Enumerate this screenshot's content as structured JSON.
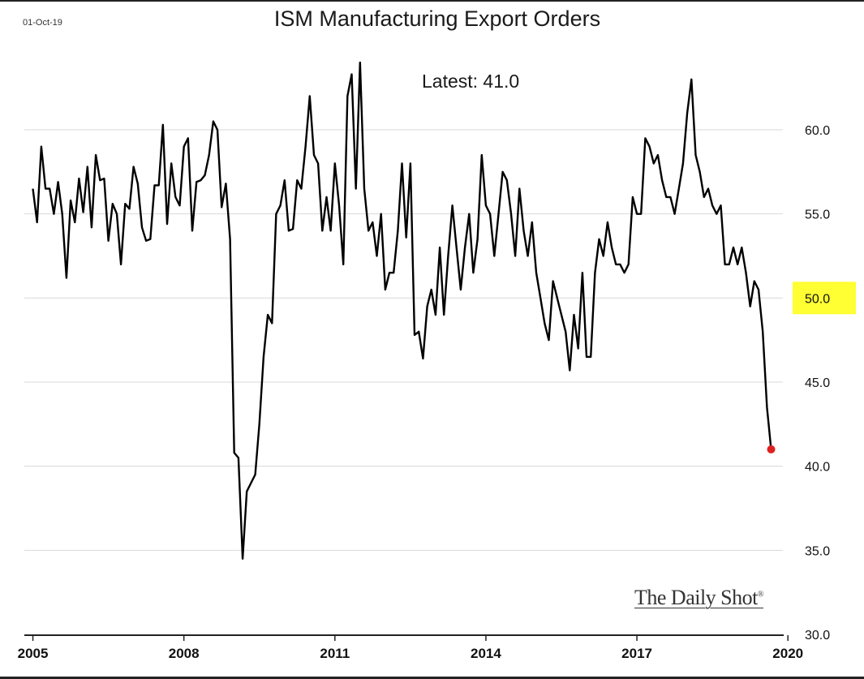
{
  "header": {
    "date_stamp": "01-Oct-19",
    "title": "ISM Manufacturing Export Orders",
    "latest_text": "Latest:  41.0"
  },
  "branding": {
    "name": "The Daily Shot",
    "mark": "®"
  },
  "colors": {
    "line": "#000000",
    "latest_marker": "#e02020",
    "highlight_50": "#ffff33",
    "gridline": "#d9d9d9"
  },
  "chart_data": {
    "type": "line",
    "title": "ISM Manufacturing Export Orders",
    "xlabel": "",
    "ylabel": "",
    "ylim": [
      30,
      62
    ],
    "xlim": [
      2004.83,
      2019.9
    ],
    "y_ticks": [
      "30.0",
      "35.0",
      "40.0",
      "45.0",
      "50.0",
      "55.0",
      "60.0"
    ],
    "x_ticks": [
      "2005",
      "2008",
      "2011",
      "2014",
      "2017",
      "2020"
    ],
    "highlighted_y_tick": "50.0",
    "grid": true,
    "annotation": "Latest:  41.0",
    "latest_value": 41.0,
    "series": [
      {
        "x_start": "2005-01",
        "frequency": "monthly",
        "values": [
          56.5,
          54.5,
          59.0,
          56.5,
          56.5,
          55.0,
          56.9,
          55.0,
          51.2,
          55.8,
          54.5,
          57.1,
          55.1,
          57.8,
          54.2,
          58.5,
          57.0,
          57.1,
          53.4,
          55.6,
          55.0,
          52.0,
          55.6,
          55.3,
          57.8,
          56.8,
          54.2,
          53.4,
          53.5,
          56.7,
          56.7,
          60.3,
          54.4,
          58.0,
          56.0,
          55.5,
          59.0,
          59.5,
          54.0,
          56.9,
          57.0,
          57.3,
          58.5,
          60.5,
          60.0,
          55.4,
          56.8,
          53.5,
          40.8,
          40.5,
          34.5,
          38.5,
          39.0,
          39.5,
          42.5,
          46.5,
          49.0,
          48.5,
          55.0,
          55.5,
          57.0,
          54.0,
          54.1,
          57.0,
          56.5,
          59.0,
          62.0,
          58.5,
          58.0,
          54.0,
          56.0,
          54.0,
          58.0,
          55.5,
          52.0,
          62.0,
          63.3,
          56.5,
          64.0,
          56.5,
          54.0,
          54.5,
          52.5,
          55.0,
          50.5,
          51.5,
          51.5,
          54.0,
          58.0,
          53.6,
          58.0,
          47.8,
          48.0,
          46.4,
          49.5,
          50.5,
          49.0,
          53.0,
          49.0,
          52.5,
          55.5,
          53.0,
          50.5,
          53.0,
          55.0,
          51.5,
          53.5,
          58.5,
          55.5,
          55.0,
          52.5,
          55.0,
          57.5,
          57.0,
          55.0,
          52.5,
          56.5,
          54.0,
          52.5,
          54.5,
          51.5,
          50.0,
          48.5,
          47.5,
          51.0,
          50.0,
          49.0,
          48.0,
          45.7,
          49.0,
          47.0,
          51.5,
          46.5,
          46.5,
          51.5,
          53.5,
          52.5,
          54.5,
          53.0,
          52.0,
          52.0,
          51.5,
          52.0,
          56.0,
          55.0,
          55.0,
          59.5,
          59.0,
          58.0,
          58.5,
          57.0,
          56.0,
          56.0,
          55.0,
          56.5,
          58.0,
          61.0,
          63.0,
          58.5,
          57.5,
          56.0,
          56.5,
          55.5,
          55.0,
          55.5,
          52.0,
          52.0,
          53.0,
          52.0,
          53.0,
          51.5,
          49.5,
          51.0,
          50.5,
          48.0,
          43.5,
          41.0
        ]
      }
    ]
  }
}
